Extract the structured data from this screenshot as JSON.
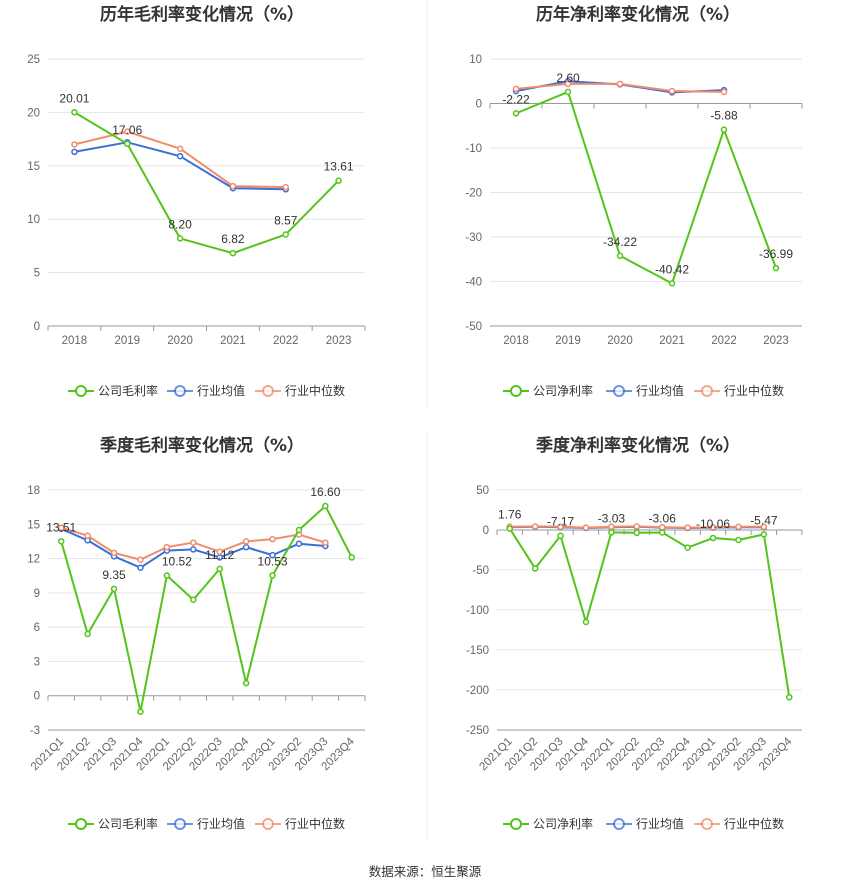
{
  "colors": {
    "company": "#52c41a",
    "industry_avg": "#3b6fd8",
    "industry_median": "#f08c6c",
    "grid": "#e6e6e6",
    "axis": "#999999",
    "divider": "#eeeeee"
  },
  "source_text": "数据来源：恒生聚源",
  "chart_data": [
    {
      "type": "line",
      "title": "历年毛利率变化情况（%）",
      "categories": [
        "2018",
        "2019",
        "2020",
        "2021",
        "2022",
        "2023"
      ],
      "ylim": [
        0,
        25
      ],
      "yticks": [
        0,
        5,
        10,
        15,
        20,
        25
      ],
      "grid": true,
      "legend_position": "bottom",
      "series": [
        {
          "name": "公司毛利率",
          "key": "company",
          "values": [
            20.01,
            17.06,
            8.2,
            6.82,
            8.57,
            13.61
          ],
          "labels": [
            "20.01",
            "17.06",
            "8.20",
            "6.82",
            "8.57",
            "13.61"
          ]
        },
        {
          "name": "行业均值",
          "key": "industry_avg",
          "values": [
            16.3,
            17.2,
            15.9,
            12.9,
            12.8,
            null
          ]
        },
        {
          "name": "行业中位数",
          "key": "industry_median",
          "values": [
            17.0,
            18.2,
            16.6,
            13.1,
            13.0,
            null
          ]
        }
      ]
    },
    {
      "type": "line",
      "title": "历年净利率变化情况（%）",
      "categories": [
        "2018",
        "2019",
        "2020",
        "2021",
        "2022",
        "2023"
      ],
      "ylim": [
        -50,
        10
      ],
      "yticks": [
        -50,
        -40,
        -30,
        -20,
        -10,
        0,
        10
      ],
      "grid": true,
      "legend_position": "bottom",
      "series": [
        {
          "name": "公司净利率",
          "key": "company",
          "values": [
            -2.22,
            2.6,
            -34.22,
            -40.42,
            -5.88,
            -36.99
          ],
          "labels": [
            "-2.22",
            "2.60",
            "-34.22",
            "-40.42",
            "-5.88",
            "-36.99"
          ]
        },
        {
          "name": "行业均值",
          "key": "industry_avg",
          "values": [
            2.8,
            5.0,
            4.3,
            2.5,
            3.0,
            null
          ]
        },
        {
          "name": "行业中位数",
          "key": "industry_median",
          "values": [
            3.3,
            4.4,
            4.4,
            2.8,
            2.6,
            null
          ]
        }
      ]
    },
    {
      "type": "line",
      "title": "季度毛利率变化情况（%）",
      "categories": [
        "2021Q1",
        "2021Q2",
        "2021Q3",
        "2021Q4",
        "2022Q1",
        "2022Q2",
        "2022Q3",
        "2022Q4",
        "2023Q1",
        "2023Q2",
        "2023Q3",
        "2023Q4"
      ],
      "ylim": [
        -3,
        18
      ],
      "yticks": [
        -3,
        0,
        3,
        6,
        9,
        12,
        15,
        18
      ],
      "grid": true,
      "legend_position": "bottom",
      "series": [
        {
          "name": "公司毛利率",
          "key": "company",
          "values": [
            13.51,
            5.4,
            9.35,
            -1.4,
            10.52,
            8.4,
            11.1,
            1.1,
            10.53,
            14.5,
            16.6,
            12.1
          ],
          "labels": [
            "13.51",
            null,
            "9.35",
            null,
            "10.52",
            null,
            "11.12",
            null,
            "10.53",
            null,
            "16.60",
            null
          ]
        },
        {
          "name": "行业均值",
          "key": "industry_avg",
          "values": [
            14.6,
            13.6,
            12.2,
            11.2,
            12.7,
            12.8,
            12.1,
            13.0,
            12.3,
            13.3,
            13.1,
            null
          ]
        },
        {
          "name": "行业中位数",
          "key": "industry_median",
          "values": [
            14.7,
            14.0,
            12.5,
            11.9,
            13.0,
            13.4,
            12.6,
            13.5,
            13.7,
            14.1,
            13.4,
            null
          ]
        }
      ]
    },
    {
      "type": "line",
      "title": "季度净利率变化情况（%）",
      "categories": [
        "2021Q1",
        "2021Q2",
        "2021Q3",
        "2021Q4",
        "2022Q1",
        "2022Q2",
        "2022Q3",
        "2022Q4",
        "2023Q1",
        "2023Q2",
        "2023Q3",
        "2023Q4"
      ],
      "ylim": [
        -250,
        50
      ],
      "yticks": [
        -250,
        -200,
        -150,
        -100,
        -50,
        0,
        50
      ],
      "grid": true,
      "legend_position": "bottom",
      "series": [
        {
          "name": "公司净利率",
          "key": "company",
          "values": [
            1.76,
            -48,
            -7.17,
            -115,
            -3.03,
            -3.5,
            -3.06,
            -22,
            -10.06,
            -12.5,
            -5.47,
            -209
          ],
          "labels": [
            "1.76",
            null,
            "-7.17",
            null,
            "-3.03",
            null,
            "-3.06",
            null,
            "-10.06",
            null,
            "-5.47",
            null
          ]
        },
        {
          "name": "行业均值",
          "key": "industry_avg",
          "values": [
            3.5,
            4.0,
            3.5,
            2.5,
            3.5,
            4.0,
            3.0,
            2.5,
            3.0,
            3.5,
            3.5,
            null
          ]
        },
        {
          "name": "行业中位数",
          "key": "industry_median",
          "values": [
            4.0,
            4.5,
            4.0,
            3.0,
            4.0,
            4.5,
            3.5,
            3.0,
            3.5,
            4.0,
            4.0,
            null
          ]
        }
      ]
    }
  ]
}
